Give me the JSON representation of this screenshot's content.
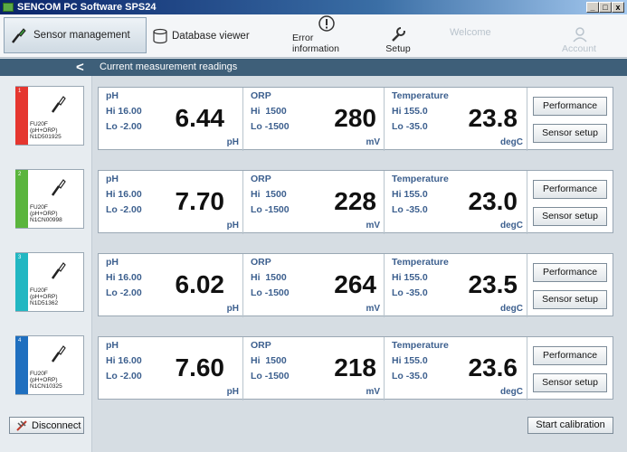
{
  "window": {
    "title": "SENCOM PC Software SPS24",
    "controls": [
      "_",
      "□",
      "x"
    ]
  },
  "toolbar": {
    "sensor_management": "Sensor management",
    "database_viewer": "Database viewer",
    "error_information": "Error information",
    "setup": "Setup",
    "welcome": "Welcome",
    "account": "Account"
  },
  "header": {
    "back": "<",
    "title": "Current measurement readings"
  },
  "sensors": [
    {
      "index": "1",
      "color": "#e5362f",
      "line1": "FU20F",
      "line2": "(pH+ORP)",
      "line3": "N1D501925"
    },
    {
      "index": "2",
      "color": "#5ab53d",
      "line1": "FU20F",
      "line2": "(pH+ORP)",
      "line3": "N1CN00998"
    },
    {
      "index": "3",
      "color": "#22b7c2",
      "line1": "FU20F",
      "line2": "(pH+ORP)",
      "line3": "N1D51362"
    },
    {
      "index": "4",
      "color": "#1f6fbf",
      "line1": "FU20F",
      "line2": "(pH+ORP)",
      "line3": "N1CN10325"
    }
  ],
  "readings": [
    {
      "ph": {
        "name": "pH",
        "hi": "Hi 16.00",
        "lo": "Lo -2.00",
        "value": "6.44",
        "unit": "pH"
      },
      "orp": {
        "name": "ORP",
        "hi": "Hi  1500",
        "lo": "Lo -1500",
        "value": "280",
        "unit": "mV"
      },
      "temp": {
        "name": "Temperature",
        "hi": "Hi 155.0",
        "lo": "Lo -35.0",
        "value": "23.8",
        "unit": "degC"
      }
    },
    {
      "ph": {
        "name": "pH",
        "hi": "Hi 16.00",
        "lo": "Lo -2.00",
        "value": "7.70",
        "unit": "pH"
      },
      "orp": {
        "name": "ORP",
        "hi": "Hi  1500",
        "lo": "Lo -1500",
        "value": "228",
        "unit": "mV"
      },
      "temp": {
        "name": "Temperature",
        "hi": "Hi 155.0",
        "lo": "Lo -35.0",
        "value": "23.0",
        "unit": "degC"
      }
    },
    {
      "ph": {
        "name": "pH",
        "hi": "Hi 16.00",
        "lo": "Lo -2.00",
        "value": "6.02",
        "unit": "pH"
      },
      "orp": {
        "name": "ORP",
        "hi": "Hi  1500",
        "lo": "Lo -1500",
        "value": "264",
        "unit": "mV"
      },
      "temp": {
        "name": "Temperature",
        "hi": "Hi 155.0",
        "lo": "Lo -35.0",
        "value": "23.5",
        "unit": "degC"
      }
    },
    {
      "ph": {
        "name": "pH",
        "hi": "Hi 16.00",
        "lo": "Lo -2.00",
        "value": "7.60",
        "unit": "pH"
      },
      "orp": {
        "name": "ORP",
        "hi": "Hi  1500",
        "lo": "Lo -1500",
        "value": "218",
        "unit": "mV"
      },
      "temp": {
        "name": "Temperature",
        "hi": "Hi 155.0",
        "lo": "Lo -35.0",
        "value": "23.6",
        "unit": "degC"
      }
    }
  ],
  "buttons": {
    "performance": "Performance",
    "sensor_setup": "Sensor setup",
    "disconnect": "Disconnect",
    "start_calibration": "Start calibration"
  }
}
